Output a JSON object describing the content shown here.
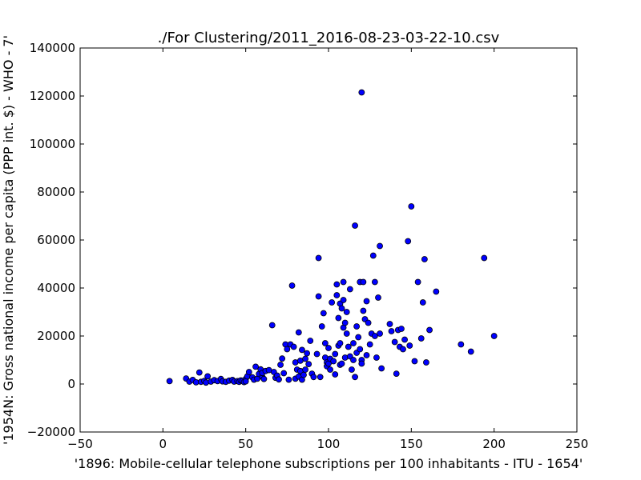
{
  "chart_data": {
    "type": "scatter",
    "title": "./For Clustering/2011_2016-08-23-03-22-10.csv",
    "xlabel": "'1896: Mobile-cellular telephone subscriptions per 100 inhabitants - ITU - 1654'",
    "ylabel": "'1954N: Gross national income per capita (PPP int. $) - WHO - 7'",
    "xlim": [
      -50,
      250
    ],
    "ylim": [
      -20000,
      140000
    ],
    "xticks": [
      -50,
      0,
      50,
      100,
      150,
      200,
      250
    ],
    "yticks": [
      -20000,
      0,
      20000,
      40000,
      60000,
      80000,
      100000,
      120000,
      140000
    ],
    "xtick_labels": [
      "−50",
      "0",
      "50",
      "100",
      "150",
      "200",
      "250"
    ],
    "ytick_labels": [
      "−20000",
      "0",
      "20000",
      "40000",
      "60000",
      "80000",
      "100000",
      "120000",
      "140000"
    ],
    "grid": false,
    "marker_color": "#0000ff",
    "marker_edge_color": "#000000",
    "points": [
      [
        4,
        1200
      ],
      [
        14,
        2300
      ],
      [
        16,
        1000
      ],
      [
        18,
        1700
      ],
      [
        20,
        700
      ],
      [
        22,
        4800
      ],
      [
        23,
        900
      ],
      [
        25,
        1300
      ],
      [
        26,
        600
      ],
      [
        27,
        3200
      ],
      [
        29,
        1000
      ],
      [
        31,
        1600
      ],
      [
        33,
        1200
      ],
      [
        35,
        2100
      ],
      [
        36,
        1100
      ],
      [
        38,
        900
      ],
      [
        40,
        1400
      ],
      [
        42,
        1700
      ],
      [
        43,
        1000
      ],
      [
        45,
        1200
      ],
      [
        46,
        900
      ],
      [
        47,
        1500
      ],
      [
        48,
        1300
      ],
      [
        49,
        800
      ],
      [
        50,
        2100
      ],
      [
        50,
        1100
      ],
      [
        51,
        3200
      ],
      [
        52,
        5000
      ],
      [
        54,
        2800
      ],
      [
        55,
        1800
      ],
      [
        56,
        7200
      ],
      [
        57,
        2200
      ],
      [
        58,
        4200
      ],
      [
        59,
        6100
      ],
      [
        60,
        3000
      ],
      [
        60,
        4600
      ],
      [
        61,
        2100
      ],
      [
        62,
        5400
      ],
      [
        64,
        5800
      ],
      [
        66,
        24500
      ],
      [
        67,
        5000
      ],
      [
        68,
        2600
      ],
      [
        69,
        3500
      ],
      [
        70,
        1900
      ],
      [
        71,
        8000
      ],
      [
        72,
        10600
      ],
      [
        73,
        4500
      ],
      [
        74,
        16500
      ],
      [
        75,
        14500
      ],
      [
        76,
        1800
      ],
      [
        77,
        16500
      ],
      [
        78,
        41000
      ],
      [
        79,
        15500
      ],
      [
        80,
        2200
      ],
      [
        80,
        9000
      ],
      [
        81,
        6000
      ],
      [
        82,
        21500
      ],
      [
        82,
        3100
      ],
      [
        83,
        5400
      ],
      [
        83,
        9700
      ],
      [
        84,
        1800
      ],
      [
        84,
        14200
      ],
      [
        85,
        3800
      ],
      [
        86,
        6000
      ],
      [
        86,
        10500
      ],
      [
        87,
        12800
      ],
      [
        88,
        8300
      ],
      [
        89,
        18000
      ],
      [
        90,
        4300
      ],
      [
        91,
        2900
      ],
      [
        93,
        12500
      ],
      [
        94,
        36500
      ],
      [
        94,
        52500
      ],
      [
        95,
        2900
      ],
      [
        96,
        24000
      ],
      [
        97,
        29500
      ],
      [
        98,
        17000
      ],
      [
        98,
        11000
      ],
      [
        99,
        9000
      ],
      [
        99,
        7400
      ],
      [
        100,
        8500
      ],
      [
        100,
        15000
      ],
      [
        101,
        6000
      ],
      [
        101,
        10500
      ],
      [
        102,
        34000
      ],
      [
        103,
        9500
      ],
      [
        104,
        12500
      ],
      [
        104,
        4000
      ],
      [
        105,
        41500
      ],
      [
        105,
        37000
      ],
      [
        106,
        16000
      ],
      [
        106,
        27500
      ],
      [
        107,
        17000
      ],
      [
        107,
        33500
      ],
      [
        107,
        8000
      ],
      [
        108,
        31500
      ],
      [
        108,
        8500
      ],
      [
        109,
        35000
      ],
      [
        109,
        23500
      ],
      [
        109,
        42500
      ],
      [
        110,
        25500
      ],
      [
        110,
        11000
      ],
      [
        111,
        21000
      ],
      [
        111,
        30000
      ],
      [
        112,
        15500
      ],
      [
        113,
        11500
      ],
      [
        113,
        39500
      ],
      [
        114,
        6000
      ],
      [
        115,
        17000
      ],
      [
        115,
        10000
      ],
      [
        116,
        66000
      ],
      [
        116,
        2900
      ],
      [
        117,
        24000
      ],
      [
        117,
        13000
      ],
      [
        118,
        19500
      ],
      [
        119,
        42500
      ],
      [
        119,
        14500
      ],
      [
        120,
        10000
      ],
      [
        120,
        121500
      ],
      [
        120,
        8500
      ],
      [
        121,
        42500
      ],
      [
        121,
        30500
      ],
      [
        122,
        27000
      ],
      [
        123,
        34500
      ],
      [
        123,
        12000
      ],
      [
        124,
        25500
      ],
      [
        125,
        16500
      ],
      [
        126,
        21000
      ],
      [
        127,
        53500
      ],
      [
        128,
        42500
      ],
      [
        128,
        20000
      ],
      [
        129,
        11000
      ],
      [
        130,
        36000
      ],
      [
        131,
        57500
      ],
      [
        131,
        21000
      ],
      [
        132,
        6500
      ],
      [
        137,
        25000
      ],
      [
        138,
        22000
      ],
      [
        140,
        17500
      ],
      [
        141,
        4300
      ],
      [
        142,
        22500
      ],
      [
        143,
        15500
      ],
      [
        144,
        23000
      ],
      [
        145,
        14500
      ],
      [
        146,
        18500
      ],
      [
        148,
        59500
      ],
      [
        149,
        16000
      ],
      [
        150,
        74000
      ],
      [
        152,
        9500
      ],
      [
        154,
        42500
      ],
      [
        156,
        19000
      ],
      [
        157,
        34000
      ],
      [
        158,
        52000
      ],
      [
        159,
        9000
      ],
      [
        161,
        22500
      ],
      [
        165,
        38500
      ],
      [
        180,
        16500
      ],
      [
        186,
        13500
      ],
      [
        194,
        52500
      ],
      [
        200,
        20000
      ]
    ]
  }
}
